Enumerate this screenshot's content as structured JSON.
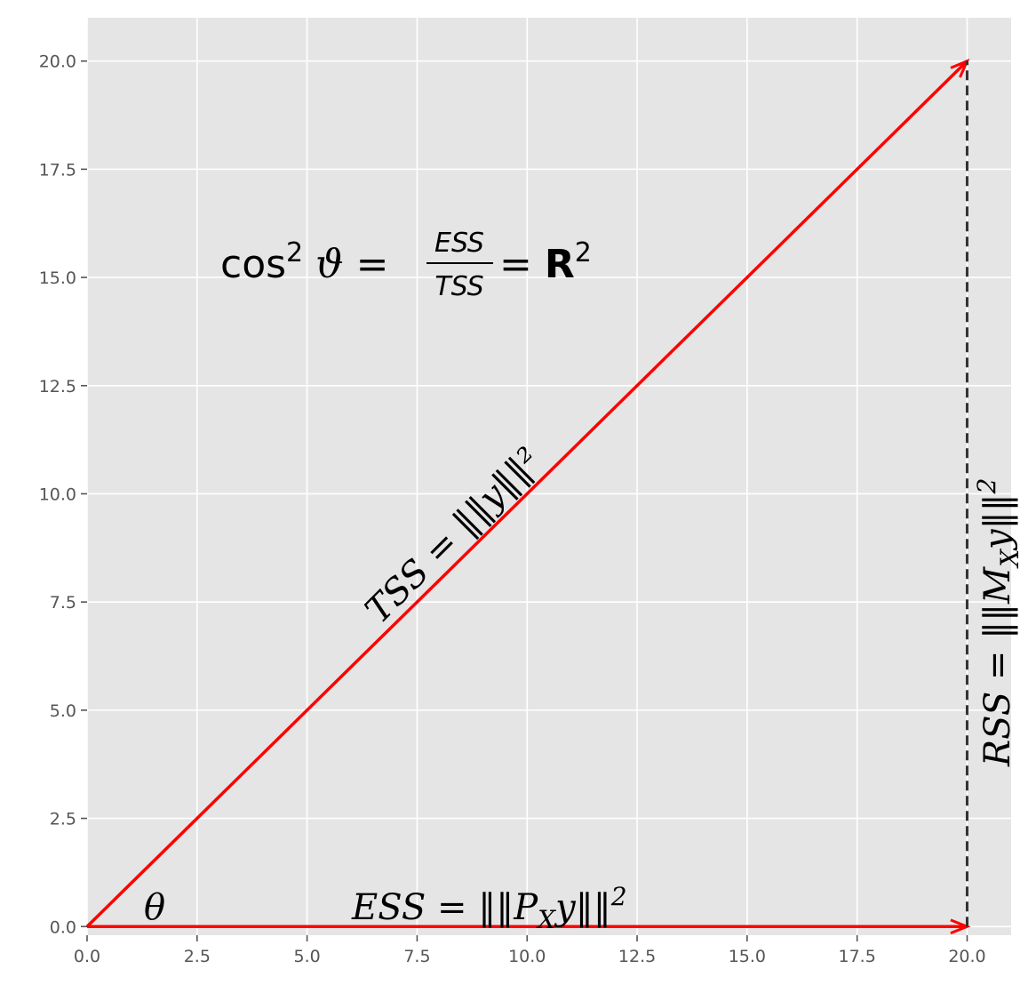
{
  "chart_data": {
    "type": "line",
    "title": "",
    "xlabel": "",
    "ylabel": "",
    "xlim": [
      0,
      21
    ],
    "ylim": [
      -0.2,
      21
    ],
    "grid": true,
    "x_ticks": [
      "0.0",
      "2.5",
      "5.0",
      "7.5",
      "10.0",
      "12.5",
      "15.0",
      "17.5",
      "20.0"
    ],
    "y_ticks": [
      "0.0",
      "2.5",
      "5.0",
      "7.5",
      "10.0",
      "12.5",
      "15.0",
      "17.5",
      "20.0"
    ],
    "vectors": [
      {
        "from": [
          0,
          0
        ],
        "to": [
          20,
          20
        ],
        "color": "#ff0000",
        "style": "solid-arrow"
      },
      {
        "from": [
          0,
          0
        ],
        "to": [
          20,
          0
        ],
        "color": "#ff0000",
        "style": "solid-arrow"
      },
      {
        "from": [
          20,
          0
        ],
        "to": [
          20,
          20
        ],
        "color": "#333333",
        "style": "dashed"
      }
    ],
    "annotations": {
      "theta": "θ",
      "ess": "ESS = ‖‖Pₓy‖‖²",
      "tss": "TSS = ‖‖y‖‖²",
      "rss": "RSS = ‖‖Mₓy‖‖²",
      "formula_left": "cos² ϑ = ",
      "formula_num": "ESS",
      "formula_den": "TSS",
      "formula_right": " = R²"
    },
    "colors": {
      "background": "#e5e5e5",
      "grid": "#ffffff",
      "vector": "#ff0000",
      "dashed": "#333333"
    }
  }
}
